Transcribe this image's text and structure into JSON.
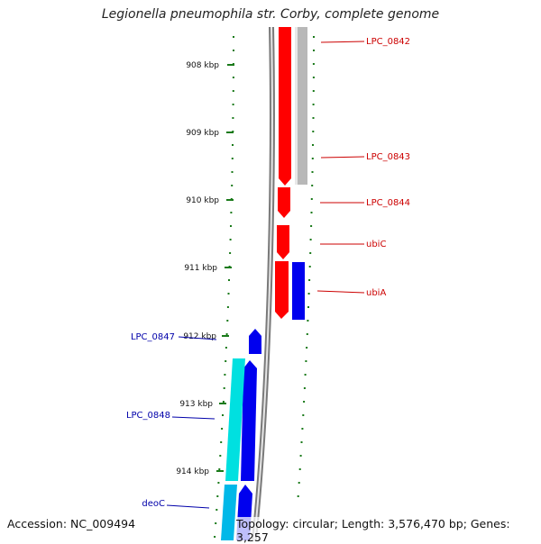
{
  "title": "Legionella pneumophila str. Corby, complete genome",
  "footer": {
    "accession": "Accession: NC_009494",
    "info": "Topology: circular; Length: 3,576,470 bp; Genes: 3,257"
  },
  "colors": {
    "tick": "#1a7a1a",
    "backbone_outer": "#888888",
    "backbone_inner": "#dddddd",
    "forward_cds": "#ff0000",
    "reverse_cds": "#0000ee",
    "cyan_cds": "#00e0e0",
    "grey_cds": "#b8b8b8",
    "red_label": "#cc0000",
    "blue_label": "#0000aa"
  },
  "ticks": [
    "908 kbp",
    "909 kbp",
    "910 kbp",
    "911 kbp",
    "912 kbp",
    "913 kbp",
    "914 kbp"
  ],
  "genes": {
    "red": [
      "LPC_0842",
      "LPC_0843",
      "LPC_0844",
      "ubiC",
      "ubiA"
    ],
    "blue": [
      "LPC_0847",
      "LPC_0848",
      "deoC"
    ]
  }
}
